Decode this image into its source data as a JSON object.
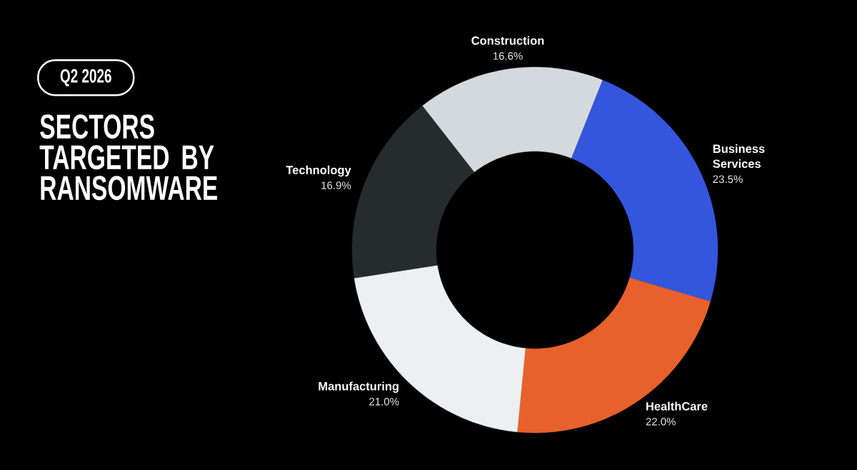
{
  "chart_data": {
    "type": "donut",
    "title": "SECTORS TARGETED BY RANSOMWARE",
    "subtitle": "Q2 2026",
    "categories": [
      "Construction",
      "Business Services",
      "HealthCare",
      "Manufacturing",
      "Technology"
    ],
    "values": [
      16.6,
      23.5,
      22.0,
      21.0,
      16.9
    ],
    "colors": [
      "#d3d9dc",
      "#3456dc",
      "#e8612c",
      "#ecf0f1",
      "#262b2e"
    ],
    "value_labels": [
      "16.6%",
      "23.5%",
      "22.0%",
      "21.0%",
      "16.9%"
    ]
  }
}
